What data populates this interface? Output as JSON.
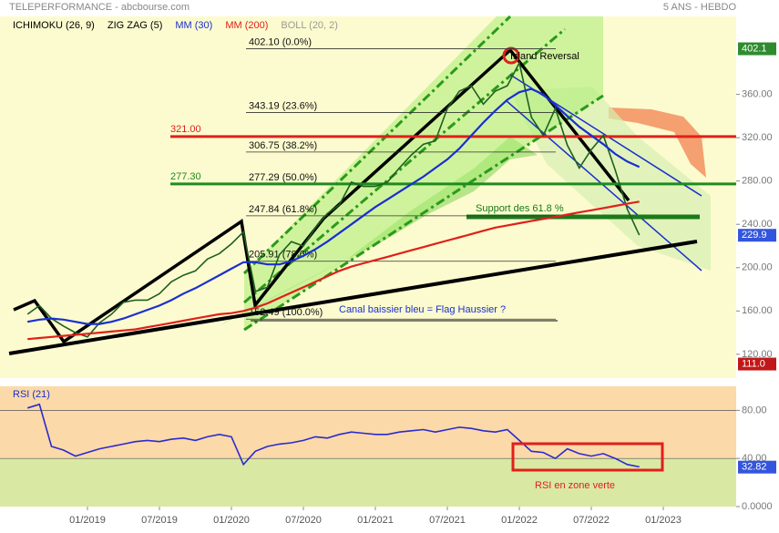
{
  "header": {
    "title": "TELEPERFORMANCE - abcbourse.com",
    "period": "5 ANS - HEBDO"
  },
  "chart_data": [
    {
      "type": "line",
      "indicators": [
        {
          "name": "ICHIMOKU (26, 9)",
          "color": "#000000"
        },
        {
          "name": "ZIG ZAG (5)",
          "color": "#000000"
        },
        {
          "name": "MM (30)",
          "color": "#1a2fd0"
        },
        {
          "name": "MM (200)",
          "color": "#e0201a"
        },
        {
          "name": "BOLL (20, 2)",
          "color": "#999999"
        }
      ],
      "x": [
        "08/2018",
        "09/2018",
        "10/2018",
        "11/2018",
        "12/2018",
        "01/2019",
        "02/2019",
        "03/2019",
        "04/2019",
        "05/2019",
        "06/2019",
        "07/2019",
        "08/2019",
        "09/2019",
        "10/2019",
        "11/2019",
        "12/2019",
        "01/2020",
        "02/2020",
        "03/2020",
        "04/2020",
        "05/2020",
        "06/2020",
        "07/2020",
        "08/2020",
        "09/2020",
        "10/2020",
        "11/2020",
        "12/2020",
        "01/2021",
        "02/2021",
        "03/2021",
        "04/2021",
        "05/2021",
        "06/2021",
        "07/2021",
        "08/2021",
        "09/2021",
        "10/2021",
        "11/2021",
        "12/2021",
        "01/2022",
        "02/2022",
        "03/2022",
        "04/2022",
        "05/2022",
        "06/2022",
        "07/2022",
        "08/2022",
        "09/2022",
        "10/2022",
        "11/2022"
      ],
      "series": [
        {
          "color": "#1f5f1f",
          "values": [
            157,
            165,
            153,
            146,
            140,
            136,
            149,
            157,
            168,
            170,
            170,
            176,
            187,
            193,
            197,
            208,
            213,
            222,
            233,
            178,
            182,
            212,
            224,
            220,
            237,
            250,
            258,
            279,
            275,
            275,
            279,
            292,
            304,
            314,
            317,
            347,
            363,
            368,
            351,
            363,
            368,
            389,
            339,
            322,
            347,
            313,
            292,
            309,
            322,
            290,
            254,
            230
          ]
        },
        {
          "color": "#1a2fd0",
          "values": [
            150,
            152,
            153,
            152,
            150,
            148,
            148,
            150,
            153,
            157,
            161,
            165,
            170,
            176,
            181,
            187,
            193,
            199,
            205,
            205,
            203,
            203,
            206,
            211,
            217,
            224,
            232,
            240,
            248,
            256,
            263,
            270,
            277,
            284,
            292,
            300,
            310,
            322,
            334,
            345,
            355,
            362,
            365,
            360,
            350,
            340,
            330,
            322,
            314,
            305,
            298,
            293
          ]
        },
        {
          "color": "#e0201a",
          "values": [
            134,
            135,
            136,
            137,
            138,
            139,
            140,
            141,
            142,
            143,
            145,
            147,
            149,
            151,
            153,
            155,
            157,
            158,
            160,
            163,
            167,
            172,
            177,
            182,
            187,
            192,
            197,
            201,
            204,
            207,
            210,
            213,
            216,
            219,
            222,
            225,
            228,
            231,
            234,
            237,
            239,
            241,
            243,
            245,
            247,
            249,
            251,
            253,
            255,
            257,
            259,
            261
          ]
        }
      ],
      "xlim": [
        "07/2018",
        "07/2023"
      ],
      "xticks": [
        "01/2019",
        "07/2019",
        "01/2020",
        "07/2020",
        "01/2021",
        "07/2021",
        "01/2022",
        "07/2022",
        "01/2023"
      ],
      "ylim": [
        98,
        432
      ],
      "yticks": [
        {
          "value": 120,
          "label": "120.00"
        },
        {
          "value": 160,
          "label": "160.00"
        },
        {
          "value": 200,
          "label": "200.00"
        },
        {
          "value": 240,
          "label": "240.00"
        },
        {
          "value": 280,
          "label": "280.00"
        },
        {
          "value": 320,
          "label": "320.00"
        },
        {
          "value": 360,
          "label": "360.00"
        }
      ],
      "fibonacci": [
        {
          "value": 402.1,
          "label": "402.10 (0.0%)"
        },
        {
          "value": 343.19,
          "label": "343.19 (23.6%)"
        },
        {
          "value": 306.75,
          "label": "306.75 (38.2%)"
        },
        {
          "value": 277.29,
          "label": "277.29 (50.0%)"
        },
        {
          "value": 247.84,
          "label": "247.84 (61.8%)"
        },
        {
          "value": 205.91,
          "label": "205.91 (78.6%)"
        },
        {
          "value": 152.49,
          "label": "152.49 (100.0%)"
        }
      ],
      "levels": [
        {
          "value": 321,
          "label": "321.00",
          "color": "#e0201a"
        },
        {
          "value": 277.3,
          "label": "277.30",
          "color": "#1f8a1f"
        }
      ],
      "price_tags": [
        {
          "value": 402.1,
          "label": "402.1",
          "color": "#2e8b2e"
        },
        {
          "value": 229.9,
          "label": "229.9",
          "color": "#3355dd"
        },
        {
          "value": 111,
          "label": "111.0",
          "color": "#c01818"
        }
      ],
      "annotations": [
        "Island Reversal",
        "Support des 61.8 %",
        "Canal baissier bleu = Flag Haussier ?"
      ]
    },
    {
      "type": "line",
      "title": "RSI (21)",
      "x": [
        "08/2018",
        "09/2018",
        "10/2018",
        "11/2018",
        "12/2018",
        "01/2019",
        "02/2019",
        "03/2019",
        "04/2019",
        "05/2019",
        "06/2019",
        "07/2019",
        "08/2019",
        "09/2019",
        "10/2019",
        "11/2019",
        "12/2019",
        "01/2020",
        "02/2020",
        "03/2020",
        "04/2020",
        "05/2020",
        "06/2020",
        "07/2020",
        "08/2020",
        "09/2020",
        "10/2020",
        "11/2020",
        "12/2020",
        "01/2021",
        "02/2021",
        "03/2021",
        "04/2021",
        "05/2021",
        "06/2021",
        "07/2021",
        "08/2021",
        "09/2021",
        "10/2021",
        "11/2021",
        "12/2021",
        "01/2022",
        "02/2022",
        "03/2022",
        "04/2022",
        "05/2022",
        "06/2022",
        "07/2022",
        "08/2022",
        "09/2022",
        "10/2022",
        "11/2022"
      ],
      "series": [
        {
          "color": "#2a2ad0",
          "values": [
            82,
            85,
            50,
            47,
            42,
            45,
            48,
            50,
            52,
            54,
            55,
            54,
            56,
            57,
            55,
            58,
            60,
            58,
            35,
            46,
            50,
            52,
            53,
            55,
            58,
            57,
            60,
            62,
            61,
            60,
            60,
            62,
            63,
            64,
            62,
            64,
            66,
            65,
            63,
            62,
            64,
            55,
            46,
            45,
            40,
            48,
            44,
            42,
            44,
            40,
            35,
            33
          ]
        }
      ],
      "xlim": [
        "07/2018",
        "07/2023"
      ],
      "ylim": [
        0,
        100
      ],
      "yticks": [
        {
          "value": 0,
          "label": "0.0000"
        },
        {
          "value": 40,
          "label": "40.00"
        },
        {
          "value": 80,
          "label": "80.00"
        }
      ],
      "bands": [
        {
          "from": 40,
          "to": 100,
          "color": "#fcd9a8"
        },
        {
          "from": 0,
          "to": 40,
          "color": "#d9e9a3"
        }
      ],
      "price_tags": [
        {
          "value": 32.82,
          "label": "32.82",
          "color": "#3355dd"
        }
      ],
      "annotations": [
        "RSI en zone verte"
      ]
    }
  ]
}
